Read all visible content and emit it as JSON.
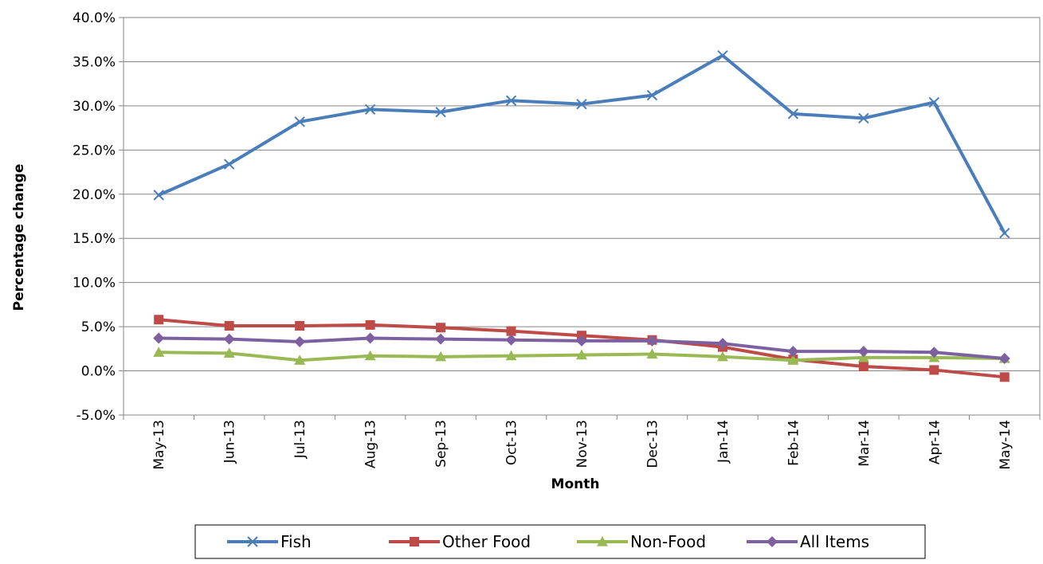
{
  "chart_data": {
    "type": "line",
    "title": "",
    "xlabel": "Month",
    "ylabel": "Percentage change",
    "ylim": [
      -5.0,
      40.0
    ],
    "yticks": [
      -5.0,
      0.0,
      5.0,
      10.0,
      15.0,
      20.0,
      25.0,
      30.0,
      35.0,
      40.0
    ],
    "y_format": "percent_one_decimal",
    "grid": "horizontal",
    "legend_position": "bottom",
    "categories": [
      "May-13",
      "Jun-13",
      "Jul-13",
      "Aug-13",
      "Sep-13",
      "Oct-13",
      "Nov-13",
      "Dec-13",
      "Jan-14",
      "Feb-14",
      "Mar-14",
      "Apr-14",
      "May-14"
    ],
    "series": [
      {
        "name": "Fish",
        "color": "#4a7ebb",
        "marker": "x",
        "values": [
          19.9,
          23.4,
          28.2,
          29.6,
          29.3,
          30.6,
          30.2,
          31.2,
          35.7,
          29.1,
          28.6,
          30.4,
          15.6
        ]
      },
      {
        "name": "Other Food",
        "color": "#be4b48",
        "marker": "square",
        "values": [
          5.8,
          5.1,
          5.1,
          5.2,
          4.9,
          4.5,
          4.0,
          3.5,
          2.7,
          1.3,
          0.5,
          0.1,
          -0.7
        ]
      },
      {
        "name": "Non-Food",
        "color": "#98b954",
        "marker": "triangle",
        "values": [
          2.1,
          2.0,
          1.2,
          1.7,
          1.6,
          1.7,
          1.8,
          1.9,
          1.6,
          1.2,
          1.5,
          1.5,
          1.4
        ]
      },
      {
        "name": "All Items",
        "color": "#7d60a0",
        "marker": "diamond",
        "values": [
          3.7,
          3.6,
          3.3,
          3.7,
          3.6,
          3.5,
          3.4,
          3.4,
          3.1,
          2.2,
          2.2,
          2.1,
          1.4
        ]
      }
    ]
  }
}
